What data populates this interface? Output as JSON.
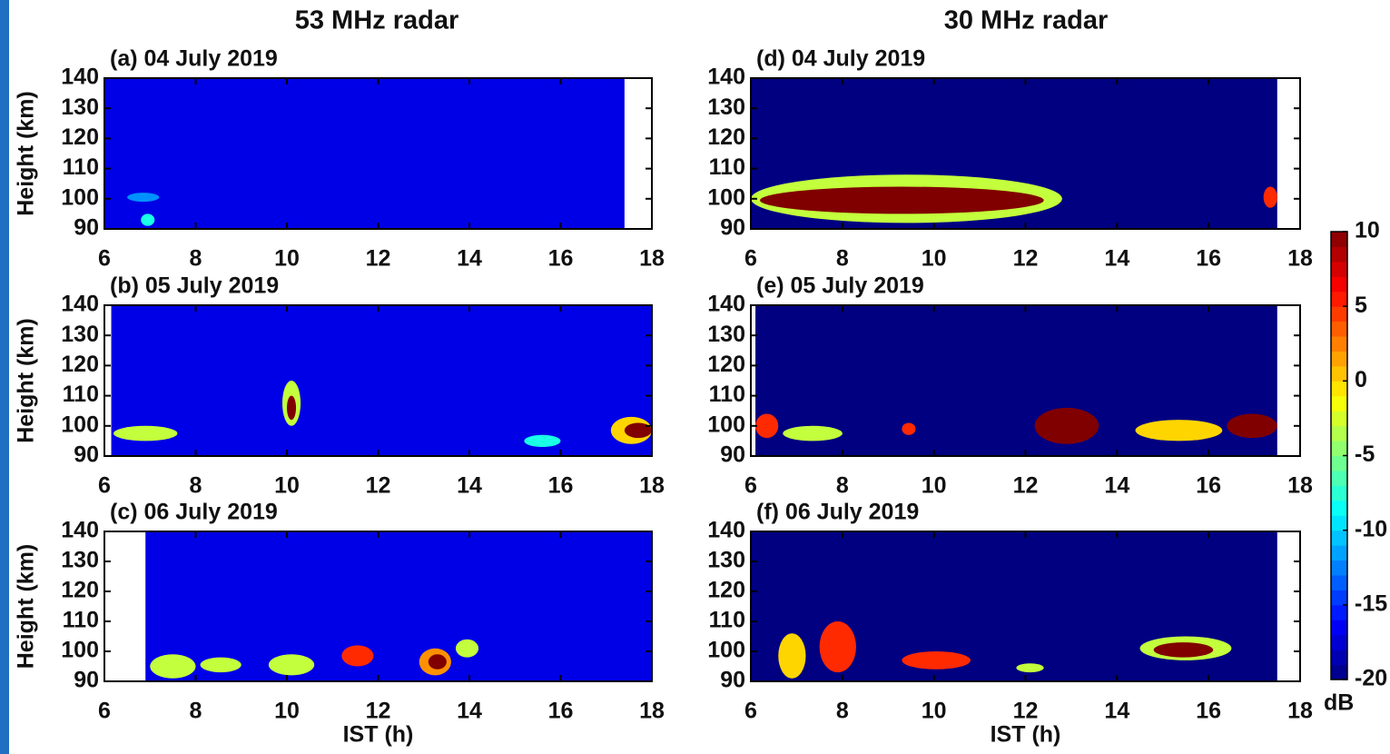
{
  "column_titles": [
    "53 MHz radar",
    "30 MHz radar"
  ],
  "colorbar": {
    "label": "dB",
    "lim": [
      -20,
      10
    ],
    "ticks": [
      10,
      5,
      0,
      -5,
      -10,
      -15,
      -20
    ],
    "colormap": "jet"
  },
  "chart_data": [
    {
      "type": "heatmap",
      "title": "(a) 04 July 2019",
      "ylabel": "Height (km)",
      "xlim": [
        6,
        18
      ],
      "ylim": [
        90,
        140
      ],
      "xticks": [
        6,
        8,
        10,
        12,
        14,
        16,
        18
      ],
      "yticks": [
        90,
        100,
        110,
        120,
        130,
        140
      ],
      "data_xlim": [
        6,
        17.4
      ],
      "background": -17,
      "echoes": [
        {
          "x": [
            6.5,
            7.2
          ],
          "y": [
            99,
            102
          ],
          "value": -12
        },
        {
          "x": [
            6.8,
            7.1
          ],
          "y": [
            91,
            95
          ],
          "value": -8
        }
      ]
    },
    {
      "type": "heatmap",
      "title": "(b) 05 July 2019",
      "ylabel": "Height (km)",
      "xlim": [
        6,
        18
      ],
      "ylim": [
        90,
        140
      ],
      "xticks": [
        6,
        8,
        10,
        12,
        14,
        16,
        18
      ],
      "yticks": [
        90,
        100,
        110,
        120,
        130,
        140
      ],
      "data_xlim": [
        6.15,
        18
      ],
      "background": -17,
      "echoes": [
        {
          "x": [
            6.2,
            7.6
          ],
          "y": [
            95,
            100
          ],
          "value": -3
        },
        {
          "x": [
            9.9,
            10.3
          ],
          "y": [
            100,
            115
          ],
          "value": -3
        },
        {
          "x": [
            10,
            10.2
          ],
          "y": [
            102,
            110
          ],
          "value": 10
        },
        {
          "x": [
            15.2,
            16
          ],
          "y": [
            93,
            97
          ],
          "value": -8
        },
        {
          "x": [
            17.1,
            18
          ],
          "y": [
            94,
            103
          ],
          "value": 0
        },
        {
          "x": [
            17.4,
            18
          ],
          "y": [
            96,
            101
          ],
          "value": 10
        }
      ]
    },
    {
      "type": "heatmap",
      "title": "(c) 06 July 2019",
      "ylabel": "Height (km)",
      "xlabel": "IST (h)",
      "xlim": [
        6,
        18
      ],
      "ylim": [
        90,
        140
      ],
      "xticks": [
        6,
        8,
        10,
        12,
        14,
        16,
        18
      ],
      "yticks": [
        90,
        100,
        110,
        120,
        130,
        140
      ],
      "data_xlim": [
        6.9,
        18
      ],
      "background": -17,
      "echoes": [
        {
          "x": [
            7,
            8
          ],
          "y": [
            91,
            99
          ],
          "value": -3
        },
        {
          "x": [
            8.1,
            9
          ],
          "y": [
            93,
            98
          ],
          "value": -3
        },
        {
          "x": [
            9.6,
            10.6
          ],
          "y": [
            92,
            99
          ],
          "value": -3
        },
        {
          "x": [
            11.2,
            11.9
          ],
          "y": [
            95,
            102
          ],
          "value": 5
        },
        {
          "x": [
            12.9,
            13.6
          ],
          "y": [
            92,
            101
          ],
          "value": 2
        },
        {
          "x": [
            13.1,
            13.5
          ],
          "y": [
            94,
            99
          ],
          "value": 10
        },
        {
          "x": [
            13.7,
            14.2
          ],
          "y": [
            98,
            104
          ],
          "value": -3
        }
      ]
    },
    {
      "type": "heatmap",
      "title": "(d) 04 July 2019",
      "xlim": [
        6,
        18
      ],
      "ylim": [
        90,
        140
      ],
      "xticks": [
        6,
        8,
        10,
        12,
        14,
        16,
        18
      ],
      "yticks": [
        90,
        100,
        110,
        120,
        130,
        140
      ],
      "data_xlim": [
        6,
        17.5
      ],
      "background": -20,
      "echoes": [
        {
          "x": [
            6,
            12.8
          ],
          "y": [
            92,
            108
          ],
          "value": -3
        },
        {
          "x": [
            6.2,
            12.4
          ],
          "y": [
            95,
            104
          ],
          "value": 10
        },
        {
          "x": [
            17.2,
            17.5
          ],
          "y": [
            97,
            104
          ],
          "value": 5
        }
      ]
    },
    {
      "type": "heatmap",
      "title": "(e) 05 July 2019",
      "xlim": [
        6,
        18
      ],
      "ylim": [
        90,
        140
      ],
      "xticks": [
        6,
        8,
        10,
        12,
        14,
        16,
        18
      ],
      "yticks": [
        90,
        100,
        110,
        120,
        130,
        140
      ],
      "data_xlim": [
        6.1,
        17.5
      ],
      "background": -20,
      "echoes": [
        {
          "x": [
            6.1,
            6.6
          ],
          "y": [
            96,
            104
          ],
          "value": 5
        },
        {
          "x": [
            6.7,
            8
          ],
          "y": [
            95,
            100
          ],
          "value": -3
        },
        {
          "x": [
            9.3,
            9.6
          ],
          "y": [
            97,
            101
          ],
          "value": 5
        },
        {
          "x": [
            12.2,
            13.6
          ],
          "y": [
            94,
            106
          ],
          "value": 10
        },
        {
          "x": [
            14.4,
            16.3
          ],
          "y": [
            95,
            102
          ],
          "value": 0
        },
        {
          "x": [
            16.4,
            17.5
          ],
          "y": [
            96,
            104
          ],
          "value": 10
        }
      ]
    },
    {
      "type": "heatmap",
      "title": "(f) 06 July 2019",
      "xlabel": "IST (h)",
      "xlim": [
        6,
        18
      ],
      "ylim": [
        90,
        140
      ],
      "xticks": [
        6,
        8,
        10,
        12,
        14,
        16,
        18
      ],
      "yticks": [
        90,
        100,
        110,
        120,
        130,
        140
      ],
      "data_xlim": [
        6,
        17.5
      ],
      "background": -20,
      "echoes": [
        {
          "x": [
            6.6,
            7.2
          ],
          "y": [
            91,
            106
          ],
          "value": 0
        },
        {
          "x": [
            7.5,
            8.3
          ],
          "y": [
            93,
            110
          ],
          "value": 5
        },
        {
          "x": [
            9.3,
            10.8
          ],
          "y": [
            94,
            100
          ],
          "value": 5
        },
        {
          "x": [
            11.8,
            12.4
          ],
          "y": [
            93,
            96
          ],
          "value": -3
        },
        {
          "x": [
            14.5,
            16.5
          ],
          "y": [
            97,
            105
          ],
          "value": -3
        },
        {
          "x": [
            14.8,
            16.1
          ],
          "y": [
            98,
            103
          ],
          "value": 10
        }
      ]
    }
  ]
}
